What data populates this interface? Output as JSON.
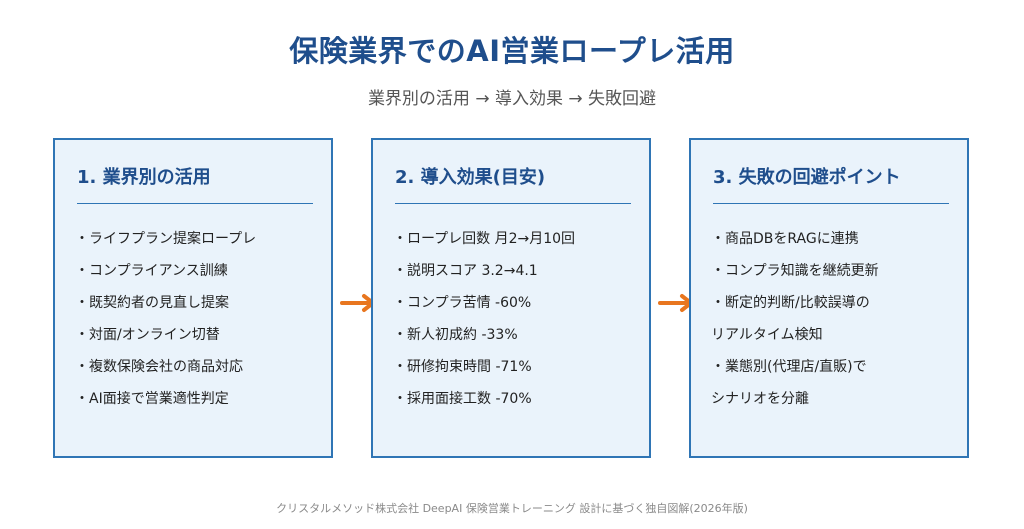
{
  "title": "保険業界でのAI営業ロープレ活用",
  "subtitle": "業界別の活用 → 導入効果 → 失敗回避",
  "panels": [
    {
      "heading": "1. 業界別の活用",
      "items": [
        "・ライフプラン提案ロープレ",
        "・コンプライアンス訓練",
        "・既契約者の見直し提案",
        "・対面/オンライン切替",
        "・複数保険会社の商品対応",
        "・AI面接で営業適性判定"
      ]
    },
    {
      "heading": "2. 導入効果(目安)",
      "items": [
        "・ロープレ回数 月2→月10回",
        "・説明スコア 3.2→4.1",
        "・コンプラ苦情 -60%",
        "・新人初成約 -33%",
        "・研修拘束時間 -71%",
        "・採用面接工数 -70%"
      ]
    },
    {
      "heading": "3. 失敗の回避ポイント",
      "items": [
        "・商品DBをRAGに連携",
        "・コンプラ知識を継続更新",
        "・断定的判断/比較誤導の",
        "リアルタイム検知",
        "・業態別(代理店/直販)で",
        "シナリオを分離"
      ]
    }
  ],
  "footer": "クリスタルメソッド株式会社 DeepAI 保険営業トレーニング 設計に基づく独自図解(2026年版)",
  "colors": {
    "accent": "#1f4e8c",
    "border": "#2f75b5",
    "panel_bg": "#eaf3fb",
    "arrow": "#e8761f"
  }
}
